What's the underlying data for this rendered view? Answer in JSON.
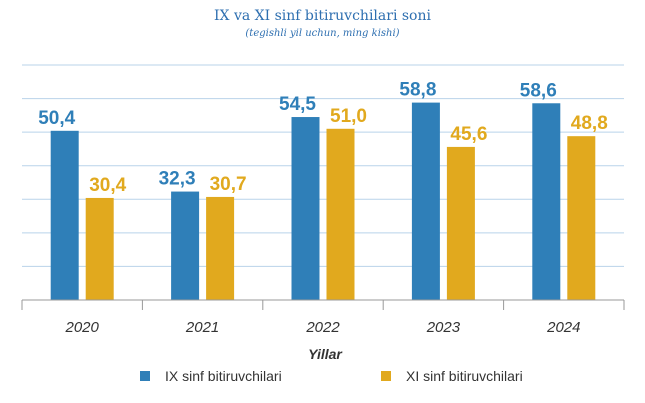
{
  "chart_data": {
    "type": "bar",
    "title": "IX va XI sinf bitiruvchilari soni",
    "subtitle": "(tegishli yil uchun, ming kishi)",
    "xlabel": "Yillar",
    "ylabel": "",
    "categories": [
      "2020",
      "2021",
      "2022",
      "2023",
      "2024"
    ],
    "series": [
      {
        "name": "IX sinf bitiruvchilari",
        "values": [
          50.4,
          32.3,
          54.5,
          58.8,
          58.6
        ],
        "labels": [
          "50,4",
          "32,3",
          "54,5",
          "58,8",
          "58,6"
        ],
        "color": "#2f7fb8"
      },
      {
        "name": "XI sinf bitiruvchilari",
        "values": [
          30.4,
          30.7,
          51.0,
          45.6,
          48.8
        ],
        "labels": [
          "30,4",
          "30,7",
          "51,0",
          "45,6",
          "48,8"
        ],
        "color": "#e1a91e"
      }
    ],
    "ylim": [
      0,
      70
    ],
    "grid": true,
    "legend_position": "bottom"
  }
}
